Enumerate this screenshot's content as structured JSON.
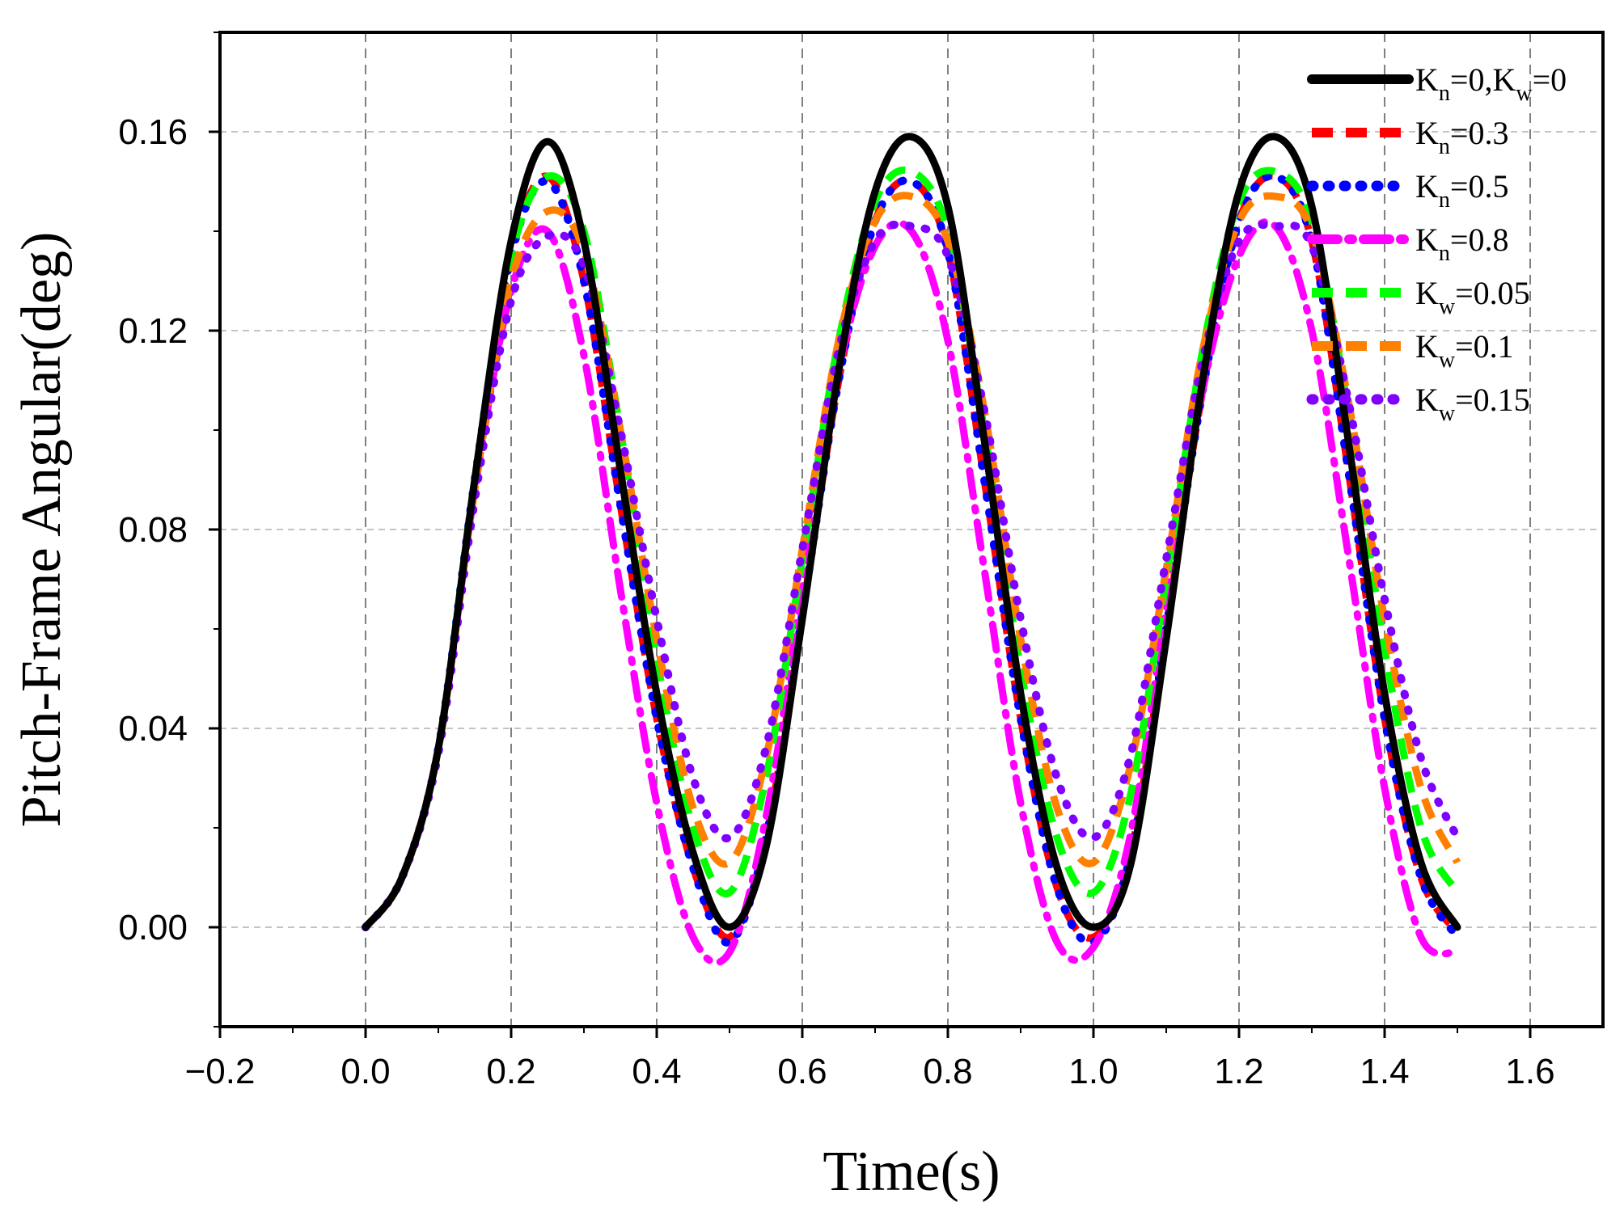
{
  "chart_data": {
    "type": "line",
    "title": "",
    "xlabel": "Time(s)",
    "ylabel": "Pitch-Frame Angular(deg)",
    "xlim": [
      -0.2,
      1.7
    ],
    "ylim": [
      -0.02,
      0.18
    ],
    "xticks": [
      -0.2,
      0.0,
      0.2,
      0.4,
      0.6,
      0.8,
      1.0,
      1.2,
      1.4,
      1.6
    ],
    "xtick_labels": [
      "−0.2",
      "0.0",
      "0.2",
      "0.4",
      "0.6",
      "0.8",
      "1.0",
      "1.2",
      "1.4",
      "1.6"
    ],
    "yticks": [
      0.0,
      0.04,
      0.08,
      0.12,
      0.16
    ],
    "ytick_labels": [
      "0.00",
      "0.04",
      "0.08",
      "0.12",
      "0.16"
    ],
    "grid": true,
    "legend_position": "top-right",
    "x": [
      0.0,
      0.05,
      0.1,
      0.15,
      0.2,
      0.25,
      0.3,
      0.35,
      0.4,
      0.45,
      0.5,
      0.55,
      0.6,
      0.65,
      0.7,
      0.75,
      0.8,
      0.85,
      0.9,
      0.95,
      1.0,
      1.05,
      1.1,
      1.15,
      1.2,
      1.25,
      1.3,
      1.35,
      1.4,
      1.45,
      1.5
    ],
    "series": [
      {
        "name": "K_n=0,K_w=0",
        "legend_parts": [
          [
            "K",
            "n",
            "=0,"
          ],
          [
            "K",
            "w",
            "=0"
          ]
        ],
        "color": "#000000",
        "dash": "solid",
        "values": [
          0.0,
          0.01,
          0.036,
          0.09,
          0.138,
          0.158,
          0.138,
          0.092,
          0.047,
          0.015,
          0.0,
          0.016,
          0.062,
          0.112,
          0.148,
          0.159,
          0.145,
          0.098,
          0.047,
          0.012,
          0.0,
          0.012,
          0.058,
          0.11,
          0.148,
          0.159,
          0.145,
          0.098,
          0.047,
          0.013,
          0.0
        ]
      },
      {
        "name": "K_n=0.3",
        "legend_parts": [
          [
            "K",
            "n",
            "=0.3"
          ]
        ],
        "color": "#ff0000",
        "dash": "dash",
        "values": [
          0.0,
          0.01,
          0.036,
          0.09,
          0.135,
          0.151,
          0.13,
          0.085,
          0.042,
          0.012,
          -0.002,
          0.018,
          0.063,
          0.11,
          0.142,
          0.15,
          0.136,
          0.09,
          0.042,
          0.008,
          -0.002,
          0.014,
          0.06,
          0.108,
          0.142,
          0.151,
          0.138,
          0.092,
          0.042,
          0.01,
          -0.001
        ]
      },
      {
        "name": "K_n=0.5",
        "legend_parts": [
          [
            "K",
            "n",
            "=0.5"
          ]
        ],
        "color": "#0000ff",
        "dash": "dot",
        "values": [
          0.0,
          0.01,
          0.036,
          0.09,
          0.135,
          0.15,
          0.13,
          0.085,
          0.042,
          0.012,
          -0.003,
          0.018,
          0.063,
          0.11,
          0.142,
          0.15,
          0.136,
          0.09,
          0.042,
          0.008,
          -0.003,
          0.014,
          0.06,
          0.108,
          0.142,
          0.151,
          0.138,
          0.092,
          0.042,
          0.01,
          -0.002
        ]
      },
      {
        "name": "K_n=0.8",
        "legend_parts": [
          [
            "K",
            "n",
            "=0.8"
          ]
        ],
        "color": "#ff00ff",
        "dash": "dashdot",
        "values": [
          0.0,
          0.01,
          0.036,
          0.088,
          0.128,
          0.14,
          0.115,
          0.068,
          0.025,
          -0.002,
          -0.005,
          0.022,
          0.068,
          0.112,
          0.137,
          0.14,
          0.118,
          0.072,
          0.025,
          -0.003,
          -0.004,
          0.018,
          0.064,
          0.108,
          0.135,
          0.141,
          0.12,
          0.075,
          0.028,
          -0.002,
          -0.005
        ]
      },
      {
        "name": "K_w=0.05",
        "legend_parts": [
          [
            "K",
            "w",
            "=0.05"
          ]
        ],
        "color": "#00ff00",
        "dash": "dash",
        "values": [
          0.0,
          0.01,
          0.036,
          0.09,
          0.135,
          0.151,
          0.14,
          0.1,
          0.054,
          0.02,
          0.007,
          0.03,
          0.074,
          0.118,
          0.146,
          0.152,
          0.14,
          0.1,
          0.052,
          0.018,
          0.007,
          0.026,
          0.07,
          0.116,
          0.146,
          0.152,
          0.142,
          0.104,
          0.056,
          0.02,
          0.007
        ]
      },
      {
        "name": "K_w=0.1",
        "legend_parts": [
          [
            "K",
            "w",
            "=0.1"
          ]
        ],
        "color": "#ff8000",
        "dash": "dash",
        "values": [
          0.0,
          0.01,
          0.036,
          0.088,
          0.13,
          0.144,
          0.136,
          0.1,
          0.058,
          0.024,
          0.013,
          0.034,
          0.076,
          0.118,
          0.142,
          0.147,
          0.138,
          0.104,
          0.058,
          0.024,
          0.013,
          0.032,
          0.072,
          0.116,
          0.142,
          0.147,
          0.14,
          0.106,
          0.062,
          0.028,
          0.013
        ]
      },
      {
        "name": "K_w=0.15",
        "legend_parts": [
          [
            "K",
            "w",
            "=0.15"
          ]
        ],
        "color": "#8000ff",
        "dash": "dot",
        "values": [
          0.0,
          0.01,
          0.035,
          0.086,
          0.126,
          0.139,
          0.133,
          0.1,
          0.062,
          0.03,
          0.018,
          0.036,
          0.076,
          0.116,
          0.138,
          0.141,
          0.135,
          0.104,
          0.062,
          0.03,
          0.018,
          0.034,
          0.074,
          0.114,
          0.138,
          0.141,
          0.137,
          0.106,
          0.066,
          0.034,
          0.018
        ]
      }
    ]
  }
}
